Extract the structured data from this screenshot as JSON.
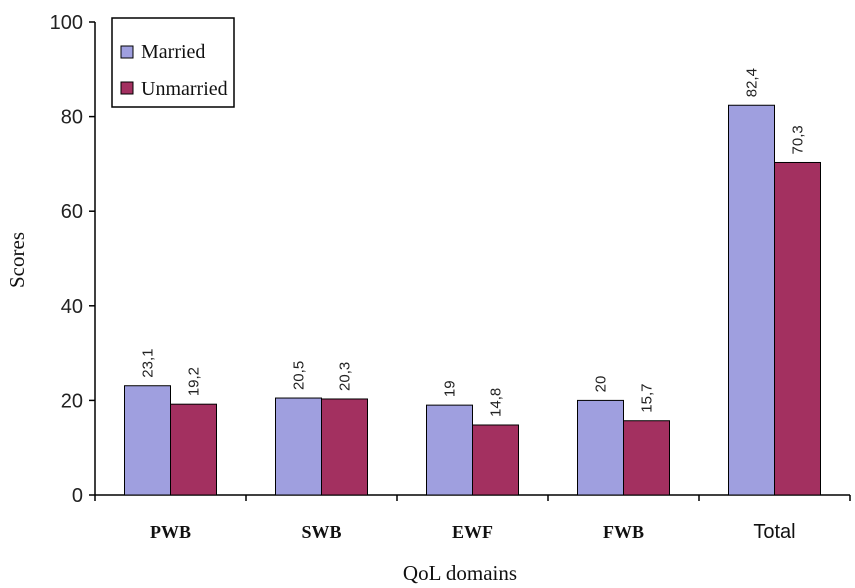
{
  "chart_data": {
    "type": "bar",
    "title": "",
    "xlabel": "QoL domains",
    "ylabel": "Scores",
    "categories": [
      "PWB",
      "SWB",
      "EWF",
      "FWB",
      "Total"
    ],
    "series": [
      {
        "name": "Married",
        "values": [
          23.1,
          20.5,
          19,
          20,
          82.4
        ],
        "labels": [
          "23,1",
          "20,5",
          "19",
          "20",
          "82,4"
        ],
        "color": "#9f9fdf"
      },
      {
        "name": "Unmarried",
        "values": [
          19.2,
          20.3,
          14.8,
          15.7,
          70.3
        ],
        "labels": [
          "19,2",
          "20,3",
          "14,8",
          "15,7",
          "70,3"
        ],
        "color": "#a33060"
      }
    ],
    "ylim": [
      0,
      100
    ],
    "yticks": [
      0,
      20,
      40,
      60,
      80,
      100
    ],
    "grid": false,
    "legend_position": "top-left"
  }
}
